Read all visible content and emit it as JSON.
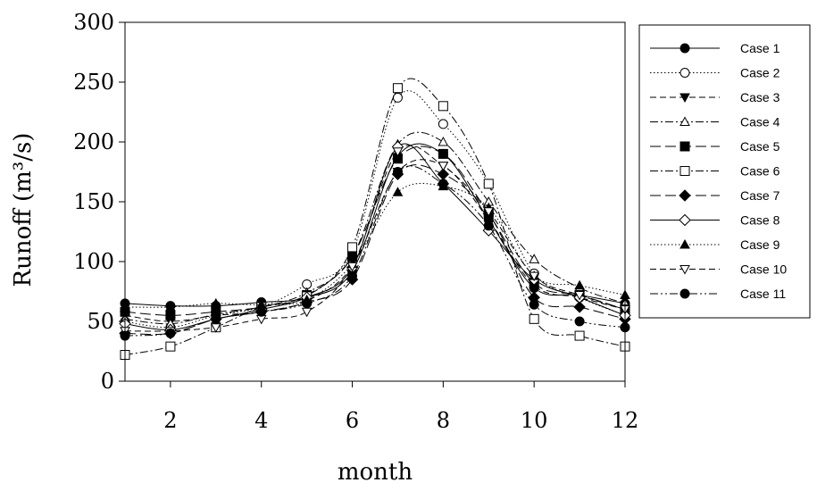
{
  "chart_data": {
    "type": "line",
    "xlabel": "month",
    "ylabel": "Runoff (m³/s)",
    "xlim": [
      1,
      12
    ],
    "ylim": [
      0,
      300
    ],
    "x_ticks": [
      2,
      4,
      6,
      8,
      10,
      12
    ],
    "y_ticks": [
      0,
      50,
      100,
      150,
      200,
      250,
      300
    ],
    "x": [
      1,
      2,
      3,
      4,
      5,
      6,
      7,
      8,
      9,
      10,
      11,
      12
    ],
    "grid": false,
    "legend_position": "right",
    "series": [
      {
        "name": "Case 1",
        "marker": "filled-circle",
        "dash": "solid",
        "values": [
          65,
          63,
          63,
          66,
          70,
          92,
          188,
          190,
          135,
          78,
          72,
          65
        ]
      },
      {
        "name": "Case 2",
        "marker": "open-circle",
        "dash": "dotted",
        "values": [
          50,
          45,
          55,
          62,
          81,
          108,
          237,
          215,
          165,
          90,
          70,
          55
        ]
      },
      {
        "name": "Case 3",
        "marker": "filled-down-triangle",
        "dash": "dashed",
        "values": [
          55,
          50,
          55,
          58,
          67,
          96,
          175,
          180,
          135,
          80,
          70,
          60
        ]
      },
      {
        "name": "Case 4",
        "marker": "open-triangle",
        "dash": "dash-dot",
        "values": [
          52,
          48,
          56,
          62,
          74,
          104,
          198,
          200,
          150,
          102,
          78,
          65
        ]
      },
      {
        "name": "Case 5",
        "marker": "filled-square",
        "dash": "long-dash",
        "values": [
          58,
          55,
          58,
          62,
          72,
          104,
          186,
          190,
          140,
          82,
          72,
          60
        ]
      },
      {
        "name": "Case 6",
        "marker": "open-square",
        "dash": "dash-dot",
        "values": [
          22,
          29,
          45,
          62,
          71,
          112,
          245,
          230,
          165,
          52,
          38,
          29
        ]
      },
      {
        "name": "Case 7",
        "marker": "filled-diamond",
        "dash": "long-dash",
        "values": [
          40,
          40,
          52,
          58,
          66,
          85,
          173,
          173,
          140,
          70,
          62,
          52
        ]
      },
      {
        "name": "Case 8",
        "marker": "open-diamond",
        "dash": "solid",
        "values": [
          48,
          43,
          52,
          60,
          70,
          95,
          196,
          165,
          126,
          85,
          70,
          55
        ]
      },
      {
        "name": "Case 9",
        "marker": "filled-triangle",
        "dash": "dotted",
        "values": [
          62,
          62,
          65,
          64,
          68,
          98,
          158,
          163,
          145,
          88,
          80,
          72
        ]
      },
      {
        "name": "Case 10",
        "marker": "open-down-triangle",
        "dash": "dashed",
        "values": [
          42,
          42,
          45,
          52,
          58,
          96,
          192,
          180,
          142,
          88,
          72,
          60
        ]
      },
      {
        "name": "Case 11",
        "marker": "filled-circle",
        "dash": "dash-dot-dot",
        "values": [
          38,
          40,
          52,
          58,
          65,
          88,
          175,
          165,
          130,
          64,
          50,
          45
        ]
      }
    ]
  }
}
